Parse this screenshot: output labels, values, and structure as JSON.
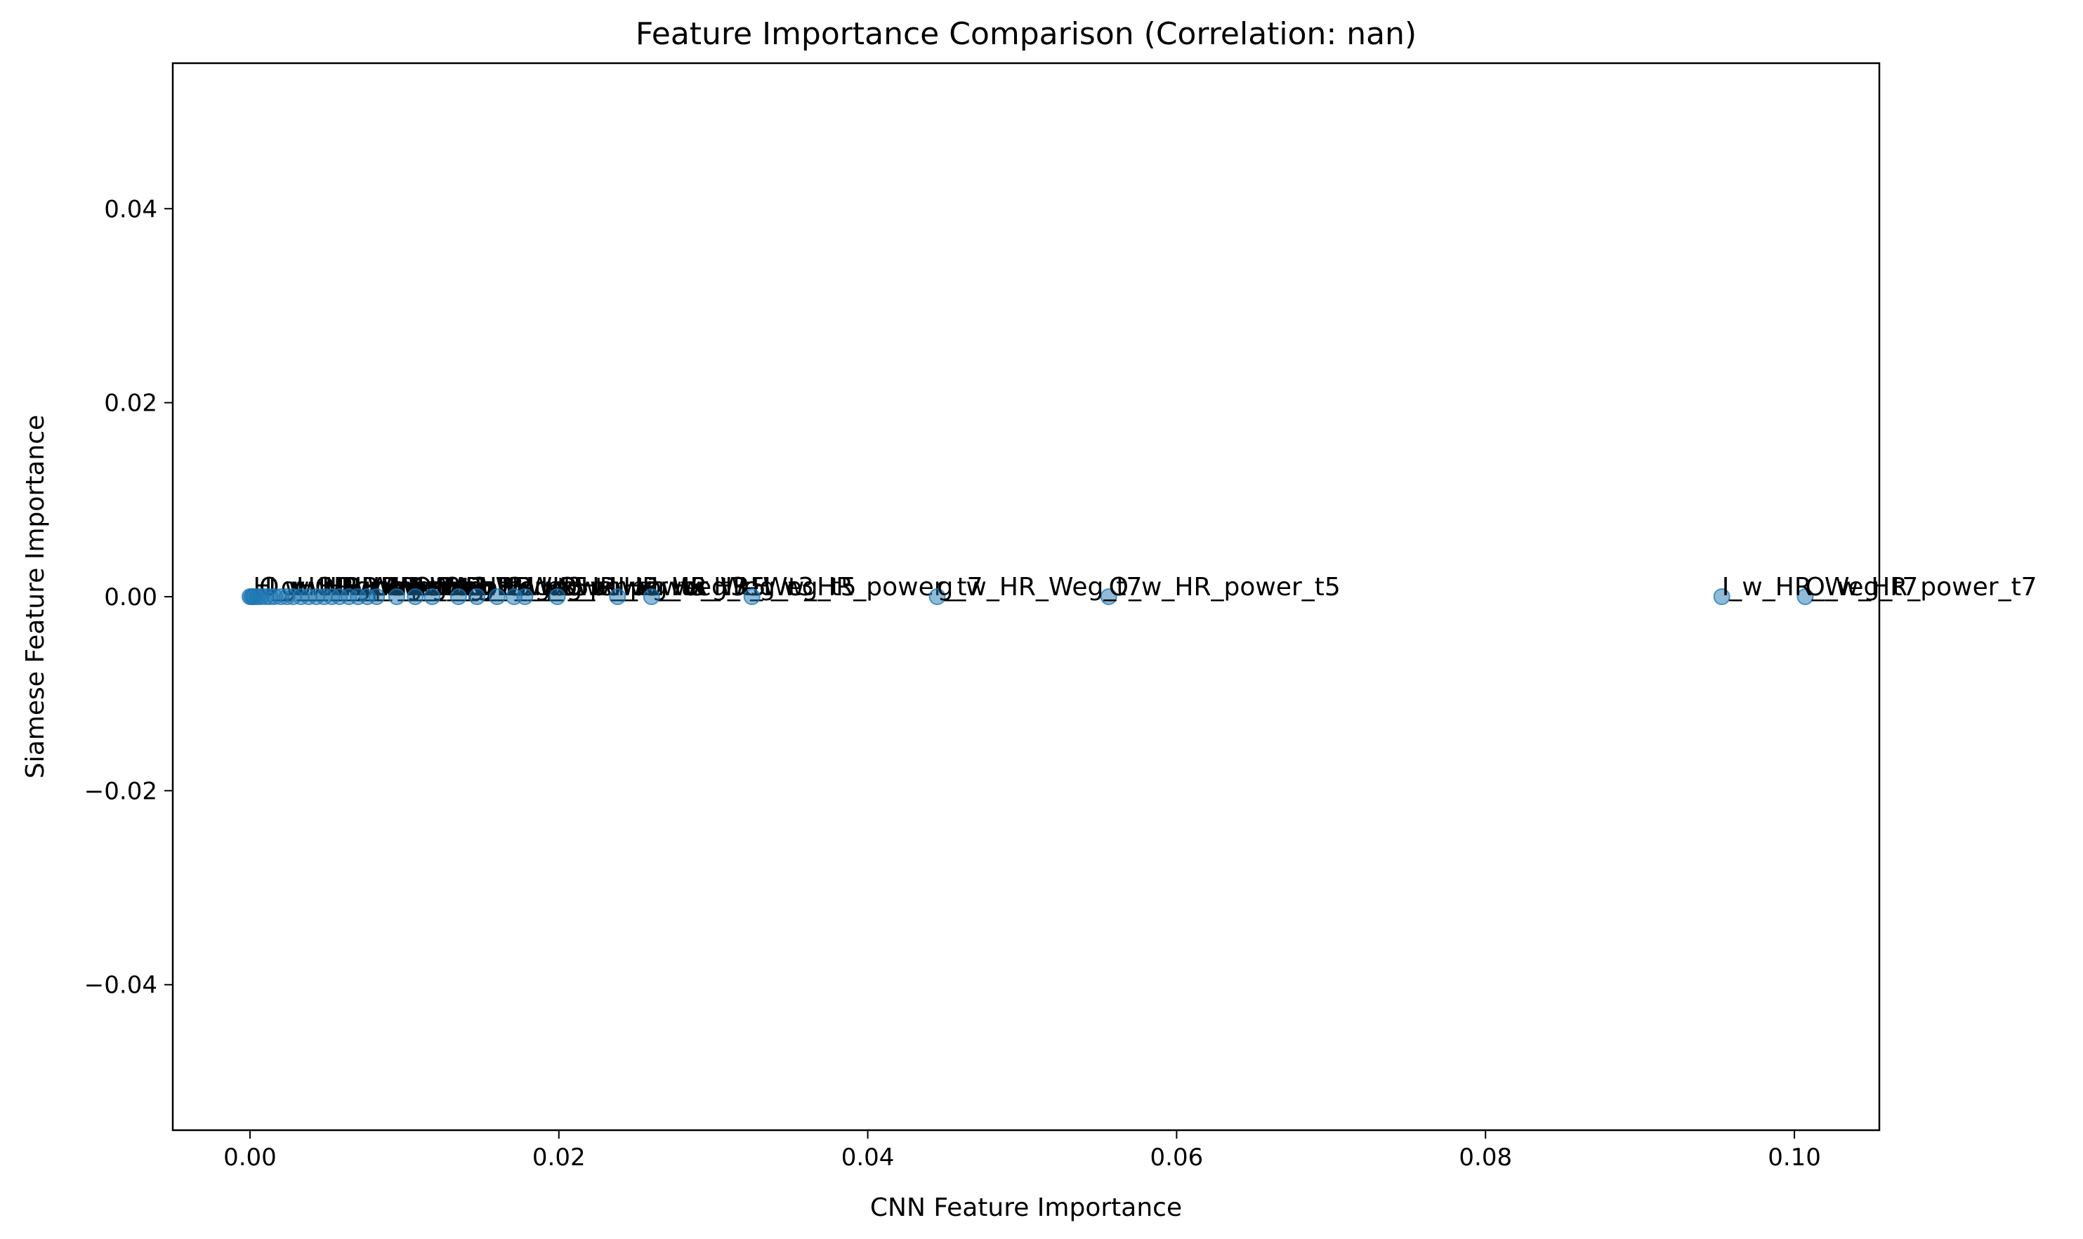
{
  "chart_data": {
    "type": "scatter",
    "title": "Feature Importance Comparison (Correlation: nan)",
    "xlabel": "CNN Feature Importance",
    "ylabel": "Siamese Feature Importance",
    "xlim": [
      -0.005,
      0.1055
    ],
    "ylim": [
      -0.055,
      0.055
    ],
    "xticks": [
      0.0,
      0.02,
      0.04,
      0.06,
      0.08,
      0.1
    ],
    "xtick_labels": [
      "0.00",
      "0.02",
      "0.04",
      "0.06",
      "0.08",
      "0.10"
    ],
    "yticks": [
      -0.04,
      -0.02,
      0.0,
      0.02,
      0.04
    ],
    "ytick_labels": [
      "−0.04",
      "−0.02",
      "0.00",
      "0.02",
      "0.04"
    ],
    "grid": false,
    "marker_color": "#1f77b4",
    "marker_alpha": 0.5,
    "points": [
      {
        "x": 0.0,
        "y": 0.0
      },
      {
        "x": 0.0001,
        "y": 0.0
      },
      {
        "x": 0.0002,
        "y": 0.0
      },
      {
        "x": 0.0003,
        "y": 0.0
      },
      {
        "x": 0.0005,
        "y": 0.0
      },
      {
        "x": 0.0007,
        "y": 0.0
      },
      {
        "x": 0.001,
        "y": 0.0
      },
      {
        "x": 0.0013,
        "y": 0.0
      },
      {
        "x": 0.0016,
        "y": 0.0
      },
      {
        "x": 0.002,
        "y": 0.0
      },
      {
        "x": 0.0024,
        "y": 0.0
      },
      {
        "x": 0.0028,
        "y": 0.0
      },
      {
        "x": 0.0033,
        "y": 0.0
      },
      {
        "x": 0.0038,
        "y": 0.0
      },
      {
        "x": 0.0043,
        "y": 0.0
      },
      {
        "x": 0.0048,
        "y": 0.0
      },
      {
        "x": 0.0053,
        "y": 0.0
      },
      {
        "x": 0.0058,
        "y": 0.0
      },
      {
        "x": 0.0064,
        "y": 0.0
      },
      {
        "x": 0.007,
        "y": 0.0
      },
      {
        "x": 0.0076,
        "y": 0.0
      },
      {
        "x": 0.0082,
        "y": 0.0
      },
      {
        "x": 0.0095,
        "y": 0.0
      },
      {
        "x": 0.0107,
        "y": 0.0
      },
      {
        "x": 0.0118,
        "y": 0.0
      },
      {
        "x": 0.0135,
        "y": 0.0
      },
      {
        "x": 0.0147,
        "y": 0.0
      },
      {
        "x": 0.016,
        "y": 0.0
      },
      {
        "x": 0.0171,
        "y": 0.0
      },
      {
        "x": 0.0178,
        "y": 0.0
      },
      {
        "x": 0.0199,
        "y": 0.0
      },
      {
        "x": 0.0238,
        "y": 0.0
      },
      {
        "x": 0.026,
        "y": 0.0
      },
      {
        "x": 0.0325,
        "y": 0.0
      },
      {
        "x": 0.0445,
        "y": 0.0,
        "label": "g_w_HR_Weg_t7"
      },
      {
        "x": 0.0556,
        "y": 0.0,
        "label": "O_w_HR_power_t5"
      },
      {
        "x": 0.0953,
        "y": 0.0,
        "label": "I_w_HR_Weg_t7"
      },
      {
        "x": 0.1007,
        "y": 0.0,
        "label": "O_w_HR_power_t7"
      }
    ],
    "cluster_labels": [
      {
        "x": 0.0002,
        "label": "H_w_HR_Weg_t3"
      },
      {
        "x": 0.0006,
        "label": "O_w_HR_power_t1"
      },
      {
        "x": 0.0012,
        "label": "I_w_HR_power_t3"
      },
      {
        "x": 0.002,
        "label": "g_w_HR_Weg_t1"
      },
      {
        "x": 0.003,
        "label": "H_w_HR_power_t5"
      },
      {
        "x": 0.0042,
        "label": "O_w_HR_Weg_t3"
      },
      {
        "x": 0.0055,
        "label": "I_w_HR_Weg_t5"
      },
      {
        "x": 0.0068,
        "label": "g_w_HR_power_t3"
      },
      {
        "x": 0.0085,
        "label": "H_w_HR_Weg_t5"
      },
      {
        "x": 0.0105,
        "label": "O_w_HR_Weg_t1"
      },
      {
        "x": 0.0125,
        "label": "I_w_HR_power_t1"
      },
      {
        "x": 0.0148,
        "label": "g_w_HR_power_t5"
      },
      {
        "x": 0.0172,
        "label": "H_w_HR_power_t3"
      },
      {
        "x": 0.0199,
        "label": "O_w_HR_Weg_t5"
      },
      {
        "x": 0.0238,
        "label": "I_w_HR_Weg_t3"
      },
      {
        "x": 0.026,
        "label": "g_w_HR_Weg_t5"
      },
      {
        "x": 0.0325,
        "label": "H_w_HR_power_t7"
      }
    ]
  }
}
